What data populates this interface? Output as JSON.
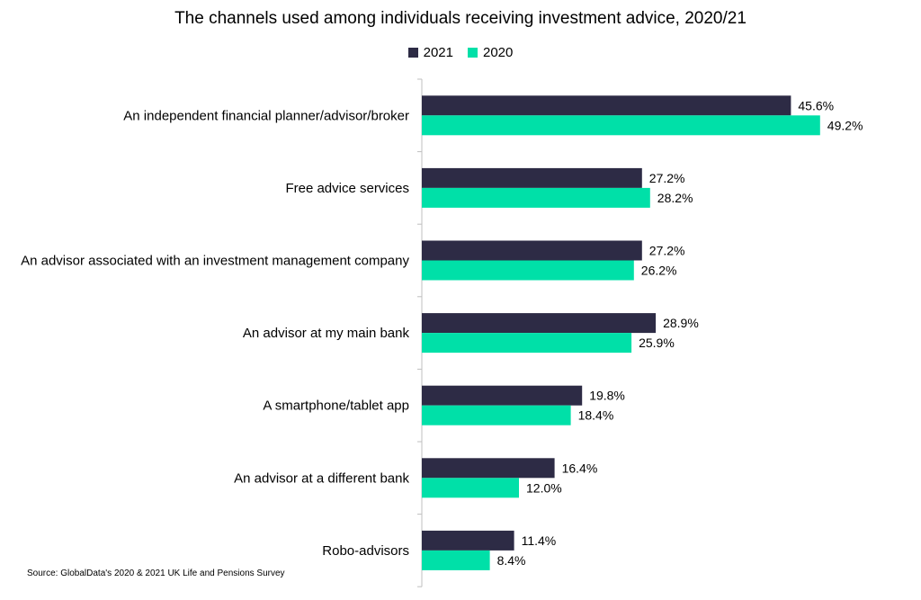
{
  "chart_data": {
    "type": "bar",
    "orientation": "horizontal",
    "title": "The channels used among individuals receiving investment advice, 2020/21",
    "categories": [
      "An independent financial planner/advisor/broker",
      "Free advice services",
      "An advisor associated with an investment management company",
      "An advisor at my main bank",
      "A smartphone/tablet app",
      "An advisor at a different bank",
      "Robo-advisors"
    ],
    "series": [
      {
        "name": "2021",
        "color": "#2d2b45",
        "values": [
          45.6,
          27.2,
          27.2,
          28.9,
          19.8,
          16.4,
          11.4
        ],
        "labels": [
          "45.6%",
          "27.2%",
          "27.2%",
          "28.9%",
          "19.8%",
          "16.4%",
          "11.4%"
        ]
      },
      {
        "name": "2020",
        "color": "#00e0a8",
        "values": [
          49.2,
          28.2,
          26.2,
          25.9,
          18.4,
          12.0,
          8.4
        ],
        "labels": [
          "49.2%",
          "28.2%",
          "26.2%",
          "25.9%",
          "18.4%",
          "12.0%",
          "8.4%"
        ]
      }
    ],
    "xlim": [
      0,
      50
    ],
    "grid": false,
    "legend_position": "top"
  },
  "source": "Source: GlobalData's 2020 & 2021 UK Life and Pensions Survey"
}
